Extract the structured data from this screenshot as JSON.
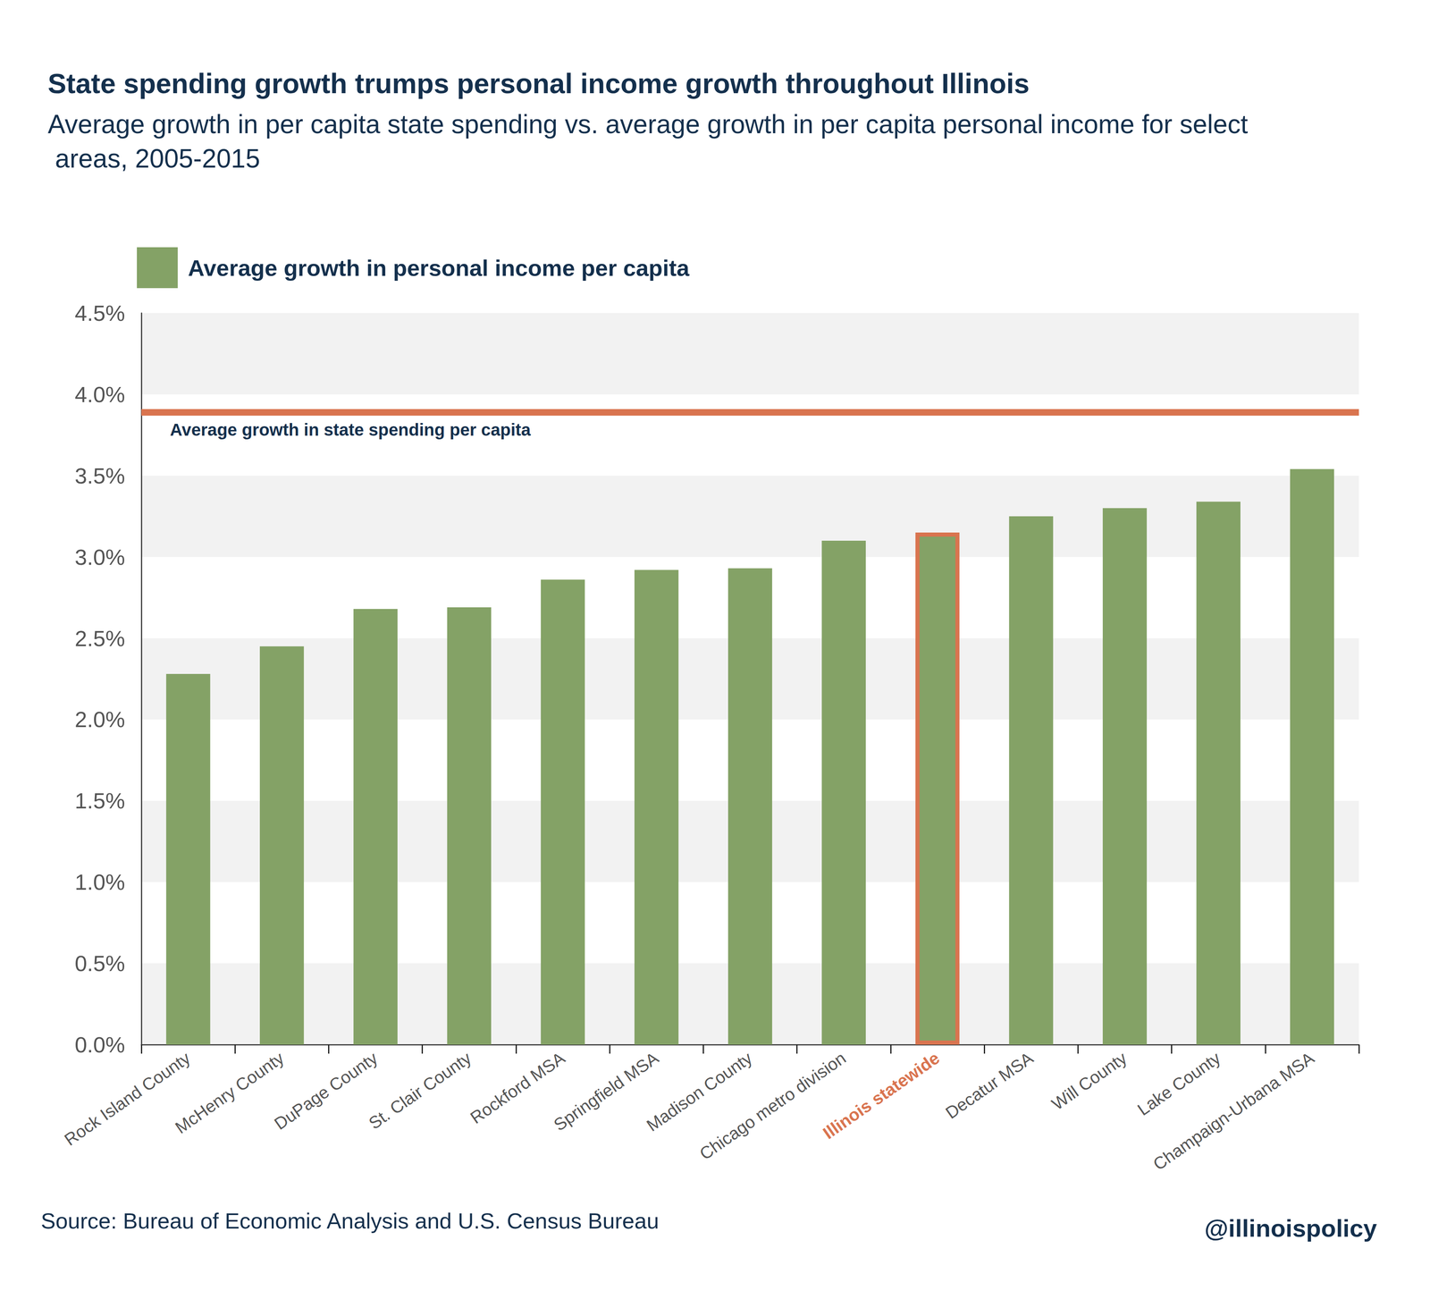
{
  "chart_data": {
    "type": "bar",
    "title": "State spending growth trumps personal income growth throughout Illinois",
    "subtitle": "Average growth in per capita state spending vs. average growth in per capita personal income for select areas, 2005-2015",
    "categories": [
      "Rock Island County",
      "McHenry County",
      "DuPage County",
      "St. Clair County",
      "Rockford MSA",
      "Springfield MSA",
      "Madison County",
      "Chicago metro division",
      "Illinois statewide",
      "Decatur MSA",
      "Will County",
      "Lake County",
      "Champaign-Urbana MSA"
    ],
    "series": [
      {
        "name": "Average growth in personal income per capita",
        "color": "#84a266",
        "values": [
          2.28,
          2.45,
          2.68,
          2.69,
          2.86,
          2.92,
          2.93,
          3.1,
          3.15,
          3.25,
          3.3,
          3.34,
          3.54
        ]
      }
    ],
    "reference_line": {
      "label": "Average growth in state spending per capita",
      "value": 3.89,
      "color": "#d9744f"
    },
    "highlight": {
      "category": "Illinois statewide",
      "color": "#d9744f"
    },
    "ylim": [
      0,
      4.5
    ],
    "yticks": [
      {
        "value": 0,
        "label": "0.0%"
      },
      {
        "value": 0.5,
        "label": "0.5%"
      },
      {
        "value": 1,
        "label": "1.0%"
      },
      {
        "value": 1.5,
        "label": "1.5%"
      },
      {
        "value": 2,
        "label": "2.0%"
      },
      {
        "value": 2.5,
        "label": "2.5%"
      },
      {
        "value": 3,
        "label": "3.0%"
      },
      {
        "value": 3.5,
        "label": "3.5%"
      },
      {
        "value": 4,
        "label": "4.0%"
      },
      {
        "value": 4.5,
        "label": "4.5%"
      }
    ],
    "grid": true,
    "legend": "top-left",
    "source": "Source: Bureau of Economic Analysis and U.S. Census Bureau",
    "credit": "@illinoispolicy"
  }
}
